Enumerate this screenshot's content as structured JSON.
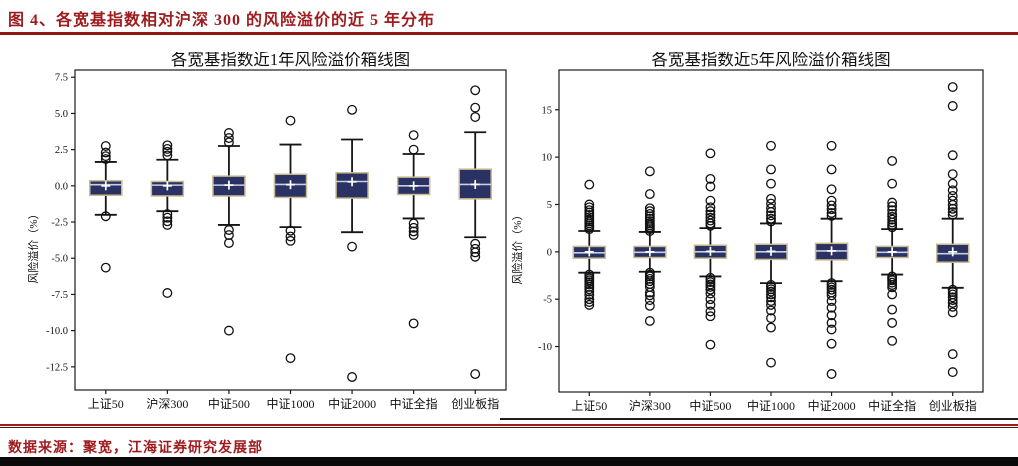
{
  "page": {
    "figure_label": "图 4、各宽基指数相对沪深 300 的风险溢价的近 5 年分布",
    "source_note": "数据来源：聚宽，江海证券研究发展部",
    "colors": {
      "accent_red": "#9e1b1e",
      "box_fill": "#2a3163",
      "box_edge": "#c9ba90",
      "median_line": "#c7cfe2",
      "mean_marker": "#ffffff",
      "whisker": "#151515",
      "frame": "#1a1a1a",
      "footer_bar": "#0a0a0a"
    }
  },
  "chart_data": [
    {
      "type": "boxplot",
      "title": "各宽基指数近1年风险溢价箱线图",
      "ylabel": "风险溢价（%）",
      "xlabel": "",
      "grid": false,
      "categories": [
        "上证50",
        "沪深300",
        "中证500",
        "中证1000",
        "中证2000",
        "中证全指",
        "创业板指"
      ],
      "ylim": [
        -14.1,
        8.0
      ],
      "yticks": [
        7.5,
        5.0,
        2.5,
        0.0,
        -2.5,
        -5.0,
        -7.5,
        -10.0,
        -12.5
      ],
      "ytick_labels": [
        "7.5",
        "5.0",
        "2.5",
        "0.0",
        "-2.5",
        "-5.0",
        "-7.5",
        "-10.0",
        "-12.5"
      ],
      "series": [
        {
          "name": "上证50",
          "q1": -0.65,
          "median": 0.08,
          "q3": 0.35,
          "mean": 0.0,
          "whisker_low": -2.0,
          "whisker_high": 1.65,
          "outliers": [
            2.75,
            2.3,
            2.05,
            1.85,
            -2.1,
            -5.65
          ]
        },
        {
          "name": "沪深300",
          "q1": -0.7,
          "median": 0.05,
          "q3": 0.3,
          "mean": 0.0,
          "whisker_low": -1.75,
          "whisker_high": 1.8,
          "outliers": [
            2.8,
            2.55,
            2.35,
            2.1,
            -1.95,
            -2.2,
            -2.45,
            -2.7,
            -7.4
          ]
        },
        {
          "name": "中证500",
          "q1": -0.7,
          "median": 0.05,
          "q3": 0.67,
          "mean": 0.05,
          "whisker_low": -2.7,
          "whisker_high": 2.75,
          "outliers": [
            3.65,
            3.3,
            3.0,
            -3.05,
            -3.4,
            -3.95,
            -10.0
          ]
        },
        {
          "name": "中证1000",
          "q1": -0.8,
          "median": 0.1,
          "q3": 0.8,
          "mean": 0.08,
          "whisker_low": -2.85,
          "whisker_high": 2.85,
          "outliers": [
            4.5,
            -3.1,
            -3.5,
            -3.8,
            -11.9
          ]
        },
        {
          "name": "中证2000",
          "q1": -0.85,
          "median": 0.3,
          "q3": 0.9,
          "mean": 0.28,
          "whisker_low": -3.2,
          "whisker_high": 3.2,
          "outliers": [
            5.25,
            -4.2,
            -13.2
          ]
        },
        {
          "name": "中证全指",
          "q1": -0.6,
          "median": 0.0,
          "q3": 0.6,
          "mean": 0.0,
          "whisker_low": -2.25,
          "whisker_high": 2.2,
          "outliers": [
            3.5,
            2.5,
            -2.6,
            -2.9,
            -3.15,
            -3.4,
            -9.5
          ]
        },
        {
          "name": "创业板指",
          "q1": -0.9,
          "median": 0.1,
          "q3": 1.15,
          "mean": 0.1,
          "whisker_low": -3.55,
          "whisker_high": 3.7,
          "outliers": [
            6.6,
            5.4,
            4.75,
            -4.0,
            -4.35,
            -4.6,
            -4.9,
            -13.0
          ]
        }
      ]
    },
    {
      "type": "boxplot",
      "title": "各宽基指数近5年风险溢价箱线图",
      "ylabel": "风险溢价（%）",
      "xlabel": "",
      "grid": false,
      "categories": [
        "上证50",
        "沪深300",
        "中证500",
        "中证1000",
        "中证2000",
        "中证全指",
        "创业板指"
      ],
      "ylim": [
        -14.8,
        19.2
      ],
      "yticks": [
        15,
        10,
        5,
        0,
        -5,
        -10
      ],
      "ytick_labels": [
        "15",
        "10",
        "5",
        "0",
        "-5",
        "-10"
      ],
      "series": [
        {
          "name": "上证50",
          "q1": -0.67,
          "median": -0.1,
          "q3": 0.57,
          "mean": 0.0,
          "whisker_low": -2.2,
          "whisker_high": 2.2,
          "outliers": [
            7.1,
            5.0,
            4.7,
            4.4,
            4.15,
            3.9,
            3.65,
            3.4,
            3.2,
            3.0,
            2.8,
            2.6,
            2.4,
            -2.4,
            -2.6,
            -2.8,
            -3.0,
            -3.2,
            -3.45,
            -3.7,
            -3.95,
            -4.2,
            -4.55,
            -5.0,
            -5.3,
            -5.6
          ]
        },
        {
          "name": "沪深300",
          "q1": -0.6,
          "median": -0.05,
          "q3": 0.57,
          "mean": 0.0,
          "whisker_low": -2.1,
          "whisker_high": 2.1,
          "outliers": [
            8.5,
            6.1,
            4.6,
            4.3,
            4.0,
            3.75,
            3.5,
            3.25,
            3.0,
            2.8,
            2.6,
            2.4,
            2.2,
            -2.2,
            -2.4,
            -2.6,
            -2.85,
            -3.1,
            -3.4,
            -3.7,
            -4.3,
            -4.6,
            -5.1,
            -5.7,
            -7.3
          ]
        },
        {
          "name": "中证500",
          "q1": -0.67,
          "median": 0.0,
          "q3": 0.7,
          "mean": 0.05,
          "whisker_low": -2.6,
          "whisker_high": 2.5,
          "outliers": [
            10.4,
            7.7,
            6.9,
            5.4,
            4.7,
            4.3,
            3.95,
            3.6,
            3.3,
            3.0,
            2.75,
            -2.75,
            -2.95,
            -3.2,
            -3.45,
            -3.7,
            -4.0,
            -4.4,
            -5.0,
            -5.6,
            -6.3,
            -6.8,
            -9.8
          ]
        },
        {
          "name": "中证1000",
          "q1": -0.8,
          "median": 0.0,
          "q3": 0.8,
          "mean": 0.05,
          "whisker_low": -3.3,
          "whisker_high": 3.0,
          "outliers": [
            11.2,
            8.7,
            7.2,
            5.6,
            5.1,
            4.6,
            4.2,
            3.85,
            3.5,
            3.2,
            -3.5,
            -3.7,
            -3.95,
            -4.2,
            -4.5,
            -4.8,
            -5.2,
            -5.6,
            -6.2,
            -7.0,
            -8.0,
            -11.7
          ]
        },
        {
          "name": "中证2000",
          "q1": -0.85,
          "median": 0.1,
          "q3": 0.9,
          "mean": 0.1,
          "whisker_low": -3.1,
          "whisker_high": 3.5,
          "outliers": [
            11.2,
            8.7,
            6.6,
            5.4,
            4.9,
            4.5,
            4.1,
            3.8,
            -3.3,
            -3.5,
            -3.75,
            -4.0,
            -4.3,
            -4.6,
            -5.2,
            -5.9,
            -6.7,
            -7.5,
            -8.2,
            -9.7,
            -12.9
          ]
        },
        {
          "name": "中证全指",
          "q1": -0.6,
          "median": -0.05,
          "q3": 0.57,
          "mean": 0.0,
          "whisker_low": -2.4,
          "whisker_high": 2.4,
          "outliers": [
            9.6,
            7.2,
            5.2,
            4.8,
            4.4,
            4.0,
            3.7,
            3.4,
            3.1,
            2.85,
            2.6,
            -2.6,
            -2.8,
            -3.0,
            -3.25,
            -3.5,
            -3.75,
            -4.5,
            -6.1,
            -7.5,
            -9.4
          ]
        },
        {
          "name": "创业板指",
          "q1": -1.1,
          "median": -0.2,
          "q3": 0.8,
          "mean": 0.0,
          "whisker_low": -3.8,
          "whisker_high": 3.5,
          "outliers": [
            17.4,
            15.4,
            10.2,
            8.2,
            7.2,
            6.5,
            5.9,
            5.4,
            4.95,
            4.55,
            4.2,
            3.9,
            -4.0,
            -4.25,
            -4.5,
            -4.8,
            -5.1,
            -5.4,
            -5.8,
            -6.4,
            -10.8,
            -12.7
          ]
        }
      ]
    }
  ]
}
